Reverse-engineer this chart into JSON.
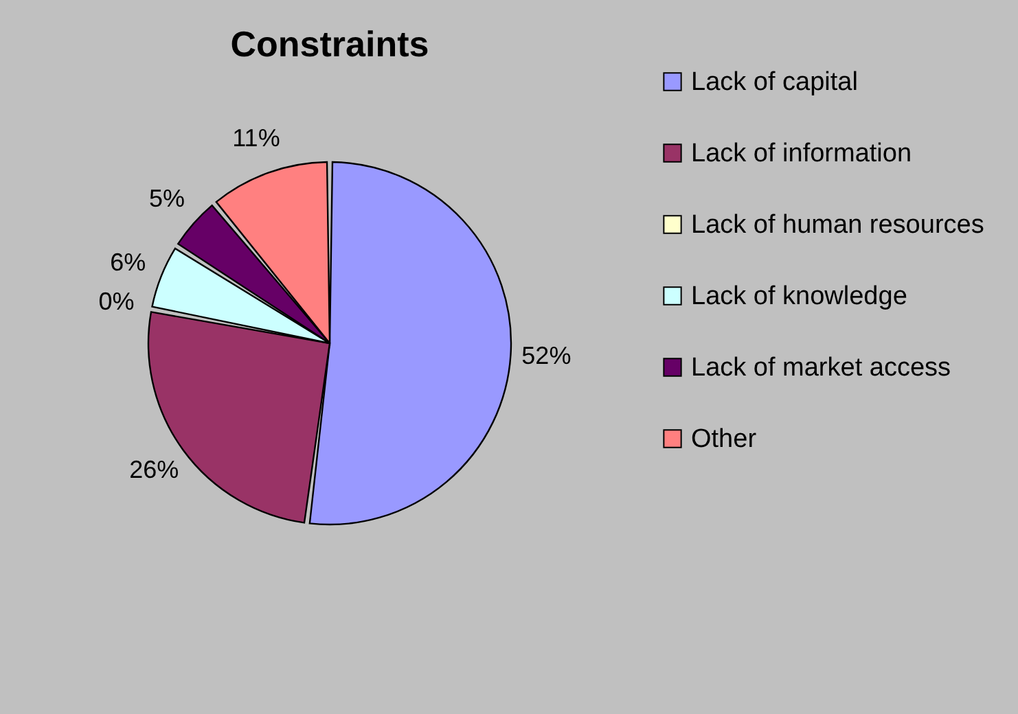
{
  "chart_data": {
    "type": "pie",
    "title": "Constraints",
    "categories": [
      "Lack of capital",
      "Lack of information",
      "Lack of human resources",
      "Lack of knowledge",
      "Lack of market access",
      "Other"
    ],
    "values": [
      52,
      26,
      0,
      6,
      5,
      11
    ],
    "value_labels": [
      "52%",
      "26%",
      "0%",
      "6%",
      "5%",
      "11%"
    ],
    "colors": [
      "#9999ff",
      "#993366",
      "#ffffcc",
      "#ccffff",
      "#660066",
      "#ff8080"
    ],
    "legend": "right"
  }
}
